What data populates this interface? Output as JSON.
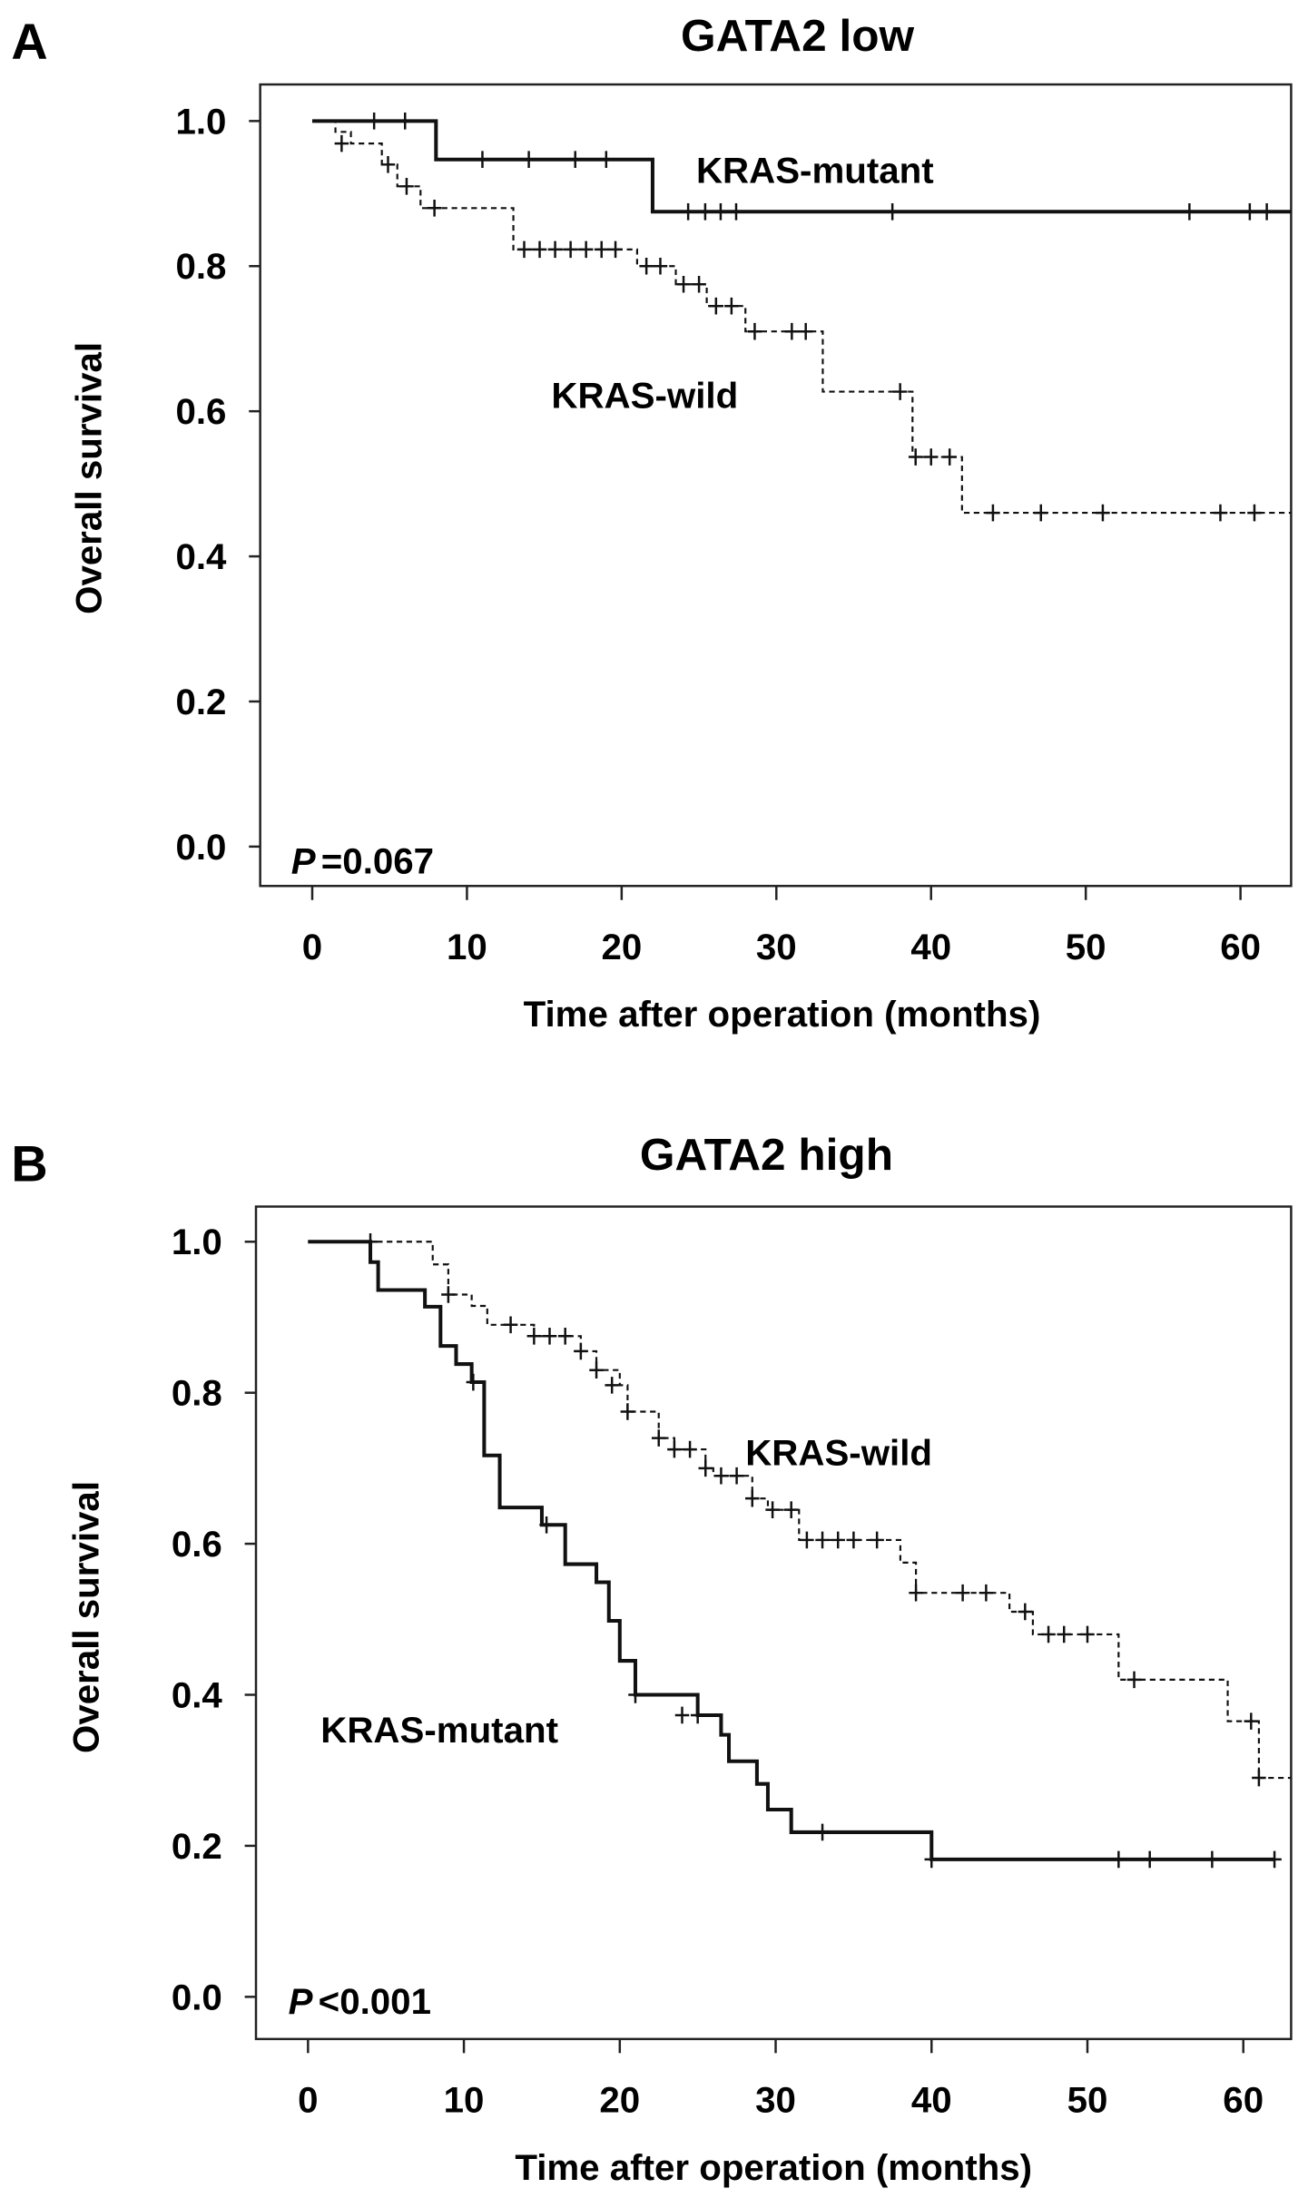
{
  "chart_data": [
    {
      "type": "line",
      "subtype": "kaplan-meier",
      "panel_letter": "A",
      "title": "GATA2 low",
      "xlabel": "Time after operation (months)",
      "ylabel": "Overall survival",
      "xlim": [
        -3.4,
        63.3
      ],
      "ylim": [
        0.0,
        1.0
      ],
      "xticks": [
        "0",
        "10",
        "20",
        "30",
        "40",
        "50",
        "60"
      ],
      "yticks": [
        "0.0",
        "0.2",
        "0.4",
        "0.6",
        "0.8",
        "1.0"
      ],
      "grid": false,
      "p_label": "P",
      "p_value": "=0.067",
      "series": [
        {
          "name": "KRAS-mutant",
          "style": "solid",
          "steps": [
            [
              0,
              1.0
            ],
            [
              8,
              0.947
            ],
            [
              22,
              0.875
            ]
          ],
          "end": 63.3,
          "censored": [
            [
              4,
              1.0
            ],
            [
              6,
              1.0
            ],
            [
              11,
              0.947
            ],
            [
              14,
              0.947
            ],
            [
              17,
              0.947
            ],
            [
              19,
              0.947
            ],
            [
              24.3,
              0.875
            ],
            [
              25.4,
              0.875
            ],
            [
              26.4,
              0.875
            ],
            [
              27.4,
              0.875
            ],
            [
              37.5,
              0.875
            ],
            [
              56.7,
              0.875
            ],
            [
              60.6,
              0.875
            ],
            [
              61.7,
              0.875
            ]
          ]
        },
        {
          "name": "KRAS-wild",
          "style": "dashed",
          "steps": [
            [
              0,
              1.0
            ],
            [
              1.5,
              0.985
            ],
            [
              2.5,
              0.969
            ],
            [
              4.5,
              0.94
            ],
            [
              5.5,
              0.91
            ],
            [
              7,
              0.88
            ],
            [
              13,
              0.823
            ],
            [
              21,
              0.8
            ],
            [
              23.5,
              0.775
            ],
            [
              25.5,
              0.745
            ],
            [
              28,
              0.71
            ],
            [
              33,
              0.627
            ],
            [
              38.8,
              0.537
            ],
            [
              42,
              0.46
            ]
          ],
          "end": 63.3,
          "censored": [
            [
              1.9,
              0.969
            ],
            [
              4.9,
              0.94
            ],
            [
              6.1,
              0.91
            ],
            [
              7.9,
              0.88
            ],
            [
              13.7,
              0.823
            ],
            [
              14.7,
              0.823
            ],
            [
              15.7,
              0.823
            ],
            [
              16.7,
              0.823
            ],
            [
              17.7,
              0.823
            ],
            [
              18.7,
              0.823
            ],
            [
              19.6,
              0.823
            ],
            [
              21.6,
              0.8
            ],
            [
              22.5,
              0.8
            ],
            [
              24,
              0.775
            ],
            [
              25,
              0.775
            ],
            [
              26.1,
              0.745
            ],
            [
              27.1,
              0.745
            ],
            [
              28.6,
              0.71
            ],
            [
              31,
              0.71
            ],
            [
              31.9,
              0.71
            ],
            [
              38,
              0.627
            ],
            [
              39,
              0.537
            ],
            [
              40,
              0.537
            ],
            [
              41.2,
              0.537
            ],
            [
              44,
              0.46
            ],
            [
              47.1,
              0.46
            ],
            [
              51.1,
              0.46
            ],
            [
              58.7,
              0.46
            ],
            [
              60.9,
              0.46
            ]
          ]
        }
      ]
    },
    {
      "type": "line",
      "subtype": "kaplan-meier",
      "panel_letter": "B",
      "title": "GATA2 high",
      "xlabel": "Time after operation (months)",
      "ylabel": "Overall survival",
      "xlim": [
        -3.3,
        63.1
      ],
      "ylim": [
        0.0,
        1.0
      ],
      "xticks": [
        "0",
        "10",
        "20",
        "30",
        "40",
        "50",
        "60"
      ],
      "yticks": [
        "0.0",
        "0.2",
        "0.4",
        "0.6",
        "0.8",
        "1.0"
      ],
      "grid": false,
      "p_label": "P",
      "p_value": "<0.001",
      "series": [
        {
          "name": "KRAS-mutant",
          "style": "solid",
          "steps": [
            [
              0,
              1.0
            ],
            [
              4,
              0.973
            ],
            [
              4.5,
              0.936
            ],
            [
              7.5,
              0.914
            ],
            [
              8.5,
              0.862
            ],
            [
              9.5,
              0.838
            ],
            [
              10.5,
              0.814
            ],
            [
              11.3,
              0.717
            ],
            [
              12.3,
              0.648
            ],
            [
              13.5,
              0.648
            ],
            [
              15,
              0.625
            ],
            [
              16.5,
              0.573
            ],
            [
              18.5,
              0.549
            ],
            [
              19.3,
              0.498
            ],
            [
              20,
              0.445
            ],
            [
              21,
              0.4
            ],
            [
              24,
              0.4
            ],
            [
              25,
              0.373
            ],
            [
              26.5,
              0.347
            ],
            [
              27,
              0.312
            ],
            [
              28.8,
              0.282
            ],
            [
              29.5,
              0.248
            ],
            [
              31,
              0.218
            ],
            [
              40,
              0.182
            ]
          ],
          "end": 62,
          "censored": [
            [
              4,
              1.0
            ],
            [
              10.6,
              0.814
            ],
            [
              15.3,
              0.625
            ],
            [
              21,
              0.4
            ],
            [
              24,
              0.373
            ],
            [
              25,
              0.373
            ],
            [
              33,
              0.218
            ],
            [
              40,
              0.182
            ],
            [
              52,
              0.182
            ],
            [
              54,
              0.182
            ],
            [
              58,
              0.182
            ],
            [
              62,
              0.182
            ]
          ]
        },
        {
          "name": "KRAS-wild",
          "style": "dashed",
          "steps": [
            [
              0,
              1.0
            ],
            [
              8,
              0.97
            ],
            [
              9,
              0.93
            ],
            [
              10.5,
              0.915
            ],
            [
              11.5,
              0.89
            ],
            [
              14.5,
              0.875
            ],
            [
              17.5,
              0.855
            ],
            [
              18.5,
              0.83
            ],
            [
              20,
              0.81
            ],
            [
              20.5,
              0.775
            ],
            [
              22.5,
              0.74
            ],
            [
              23.5,
              0.725
            ],
            [
              25.5,
              0.7
            ],
            [
              26,
              0.69
            ],
            [
              28.5,
              0.66
            ],
            [
              29.5,
              0.645
            ],
            [
              31.5,
              0.605
            ],
            [
              38,
              0.575
            ],
            [
              39,
              0.535
            ],
            [
              45,
              0.51
            ],
            [
              46.5,
              0.48
            ],
            [
              52,
              0.42
            ],
            [
              59,
              0.365
            ],
            [
              61,
              0.29
            ]
          ],
          "end": 63.1,
          "censored": [
            [
              9,
              0.93
            ],
            [
              13,
              0.89
            ],
            [
              14.5,
              0.875
            ],
            [
              15.5,
              0.875
            ],
            [
              16.5,
              0.875
            ],
            [
              17.5,
              0.855
            ],
            [
              18.5,
              0.83
            ],
            [
              19.5,
              0.81
            ],
            [
              20.5,
              0.775
            ],
            [
              22.5,
              0.74
            ],
            [
              23.5,
              0.725
            ],
            [
              24.5,
              0.725
            ],
            [
              25.5,
              0.7
            ],
            [
              26.5,
              0.69
            ],
            [
              27.5,
              0.69
            ],
            [
              28.5,
              0.66
            ],
            [
              29.8,
              0.645
            ],
            [
              31,
              0.645
            ],
            [
              32,
              0.605
            ],
            [
              33,
              0.605
            ],
            [
              34,
              0.605
            ],
            [
              35,
              0.605
            ],
            [
              36.5,
              0.605
            ],
            [
              39,
              0.535
            ],
            [
              42,
              0.535
            ],
            [
              43.5,
              0.535
            ],
            [
              46,
              0.51
            ],
            [
              47.5,
              0.48
            ],
            [
              48.5,
              0.48
            ],
            [
              50,
              0.48
            ],
            [
              53,
              0.42
            ],
            [
              60.5,
              0.365
            ],
            [
              61,
              0.29
            ]
          ]
        }
      ]
    }
  ]
}
